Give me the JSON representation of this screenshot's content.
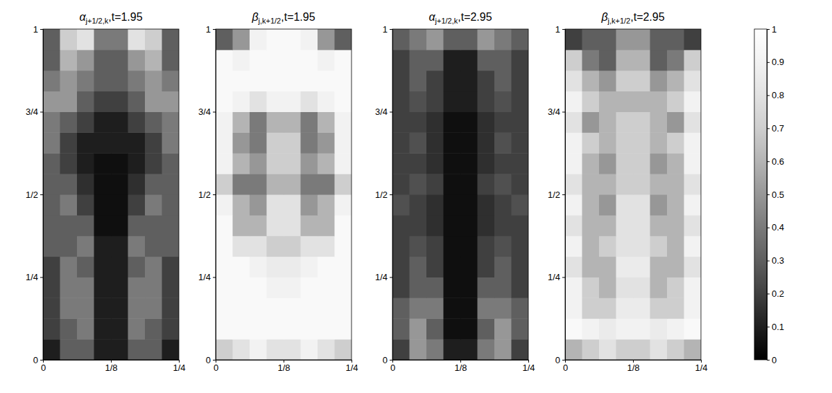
{
  "chart_data": [
    {
      "type": "heatmap",
      "title": {
        "text": "α",
        "sub": "j+1/2,k",
        "suffix": ",t=1.95"
      },
      "xlim": [
        0,
        0.25
      ],
      "ylim": [
        0,
        1
      ],
      "xticks": [
        0,
        {
          "value": 0.125,
          "label": "1/8"
        },
        {
          "value": 0.25,
          "label": "1/4"
        }
      ],
      "yticks": [
        0,
        {
          "value": 0.25,
          "label": "1/4"
        },
        {
          "value": 0.5,
          "label": "1/2"
        },
        {
          "value": 0.75,
          "label": "3/4"
        },
        1
      ],
      "cells": [
        [
          0.1,
          0.3,
          0.3,
          0.1,
          0.1,
          0.3,
          0.3,
          0.1
        ],
        [
          0.2,
          0.3,
          0.4,
          0.1,
          0.1,
          0.4,
          0.3,
          0.2
        ],
        [
          0.2,
          0.4,
          0.4,
          0.1,
          0.1,
          0.4,
          0.4,
          0.2
        ],
        [
          0.2,
          0.4,
          0.4,
          0.1,
          0.1,
          0.4,
          0.4,
          0.2
        ],
        [
          0.2,
          0.4,
          0.3,
          0.1,
          0.1,
          0.3,
          0.4,
          0.2
        ],
        [
          0.3,
          0.3,
          0.4,
          0.1,
          0.1,
          0.4,
          0.3,
          0.3
        ],
        [
          0.3,
          0.3,
          0.3,
          0.05,
          0.05,
          0.3,
          0.3,
          0.3
        ],
        [
          0.3,
          0.4,
          0.2,
          0.05,
          0.05,
          0.2,
          0.4,
          0.3
        ],
        [
          0.3,
          0.3,
          0.15,
          0.05,
          0.05,
          0.15,
          0.3,
          0.3
        ],
        [
          0.3,
          0.2,
          0.1,
          0.05,
          0.05,
          0.1,
          0.2,
          0.3
        ],
        [
          0.4,
          0.2,
          0.1,
          0.1,
          0.1,
          0.1,
          0.2,
          0.4
        ],
        [
          0.4,
          0.3,
          0.2,
          0.1,
          0.1,
          0.2,
          0.3,
          0.4
        ],
        [
          0.5,
          0.5,
          0.3,
          0.2,
          0.2,
          0.3,
          0.5,
          0.5
        ],
        [
          0.4,
          0.5,
          0.4,
          0.3,
          0.3,
          0.4,
          0.5,
          0.4
        ],
        [
          0.3,
          0.6,
          0.5,
          0.3,
          0.3,
          0.5,
          0.6,
          0.3
        ],
        [
          0.3,
          0.7,
          0.8,
          0.4,
          0.4,
          0.8,
          0.7,
          0.3
        ]
      ]
    },
    {
      "type": "heatmap",
      "title": {
        "text": "β",
        "sub": "j,k+1/2",
        "suffix": ",t=1.95"
      },
      "xlim": [
        0,
        0.25
      ],
      "ylim": [
        0,
        1
      ],
      "xticks": [
        0,
        {
          "value": 0.125,
          "label": "1/8"
        },
        {
          "value": 0.25,
          "label": "1/4"
        }
      ],
      "yticks": [
        0,
        {
          "value": 0.25,
          "label": "1/4"
        },
        {
          "value": 0.5,
          "label": "1/2"
        },
        {
          "value": 0.75,
          "label": "3/4"
        },
        1
      ],
      "cells": [
        [
          0.7,
          0.8,
          0.9,
          0.8,
          0.8,
          0.9,
          0.8,
          0.7
        ],
        [
          0.95,
          0.95,
          0.95,
          0.95,
          0.95,
          0.95,
          0.95,
          0.95
        ],
        [
          0.95,
          0.95,
          0.95,
          0.95,
          0.95,
          0.95,
          0.95,
          0.95
        ],
        [
          0.95,
          0.95,
          0.95,
          0.9,
          0.9,
          0.95,
          0.95,
          0.95
        ],
        [
          0.95,
          0.95,
          0.9,
          0.85,
          0.85,
          0.9,
          0.95,
          0.95
        ],
        [
          0.95,
          0.8,
          0.8,
          0.7,
          0.7,
          0.8,
          0.8,
          0.95
        ],
        [
          0.95,
          0.6,
          0.6,
          0.8,
          0.8,
          0.6,
          0.6,
          0.95
        ],
        [
          0.9,
          0.6,
          0.5,
          0.8,
          0.8,
          0.5,
          0.6,
          0.9
        ],
        [
          0.7,
          0.4,
          0.4,
          0.6,
          0.6,
          0.4,
          0.4,
          0.7
        ],
        [
          0.9,
          0.6,
          0.5,
          0.7,
          0.7,
          0.5,
          0.6,
          0.9
        ],
        [
          0.9,
          0.5,
          0.4,
          0.7,
          0.7,
          0.4,
          0.5,
          0.9
        ],
        [
          0.9,
          0.6,
          0.4,
          0.6,
          0.6,
          0.4,
          0.6,
          0.9
        ],
        [
          0.95,
          0.9,
          0.8,
          0.9,
          0.9,
          0.8,
          0.9,
          0.95
        ],
        [
          0.95,
          0.95,
          0.95,
          0.95,
          0.95,
          0.95,
          0.95,
          0.95
        ],
        [
          0.95,
          0.9,
          0.95,
          0.95,
          0.95,
          0.95,
          0.9,
          0.95
        ],
        [
          0.3,
          0.5,
          0.9,
          0.95,
          0.95,
          0.9,
          0.5,
          0.3
        ]
      ]
    },
    {
      "type": "heatmap",
      "title": {
        "text": "α",
        "sub": "j+1/2,k",
        "suffix": ",t=2.95"
      },
      "xlim": [
        0,
        0.25
      ],
      "ylim": [
        0,
        1
      ],
      "xticks": [
        0,
        {
          "value": 0.125,
          "label": "1/8"
        },
        {
          "value": 0.25,
          "label": "1/4"
        }
      ],
      "yticks": [
        0,
        {
          "value": 0.25,
          "label": "1/4"
        },
        {
          "value": 0.5,
          "label": "1/2"
        },
        {
          "value": 0.75,
          "label": "3/4"
        },
        1
      ],
      "cells": [
        [
          0.2,
          0.5,
          0.4,
          0.1,
          0.1,
          0.4,
          0.5,
          0.2
        ],
        [
          0.3,
          0.5,
          0.3,
          0.05,
          0.05,
          0.3,
          0.5,
          0.3
        ],
        [
          0.3,
          0.4,
          0.4,
          0.05,
          0.05,
          0.4,
          0.4,
          0.3
        ],
        [
          0.2,
          0.3,
          0.3,
          0.05,
          0.05,
          0.3,
          0.3,
          0.2
        ],
        [
          0.2,
          0.3,
          0.2,
          0.05,
          0.05,
          0.2,
          0.3,
          0.2
        ],
        [
          0.2,
          0.25,
          0.2,
          0.05,
          0.05,
          0.2,
          0.25,
          0.2
        ],
        [
          0.2,
          0.2,
          0.15,
          0.05,
          0.05,
          0.15,
          0.2,
          0.2
        ],
        [
          0.25,
          0.2,
          0.15,
          0.05,
          0.05,
          0.15,
          0.2,
          0.25
        ],
        [
          0.2,
          0.25,
          0.2,
          0.05,
          0.05,
          0.2,
          0.25,
          0.2
        ],
        [
          0.2,
          0.2,
          0.15,
          0.05,
          0.05,
          0.15,
          0.2,
          0.2
        ],
        [
          0.2,
          0.25,
          0.15,
          0.05,
          0.05,
          0.15,
          0.25,
          0.2
        ],
        [
          0.2,
          0.2,
          0.15,
          0.05,
          0.05,
          0.15,
          0.2,
          0.2
        ],
        [
          0.2,
          0.25,
          0.2,
          0.1,
          0.1,
          0.2,
          0.25,
          0.2
        ],
        [
          0.2,
          0.3,
          0.2,
          0.1,
          0.1,
          0.2,
          0.3,
          0.2
        ],
        [
          0.2,
          0.3,
          0.3,
          0.1,
          0.1,
          0.3,
          0.3,
          0.2
        ],
        [
          0.3,
          0.4,
          0.5,
          0.3,
          0.3,
          0.5,
          0.4,
          0.3
        ]
      ]
    },
    {
      "type": "heatmap",
      "title": {
        "text": "β",
        "sub": "j,k+1/2",
        "suffix": ",t=2.95"
      },
      "xlim": [
        0,
        0.25
      ],
      "ylim": [
        0,
        1
      ],
      "xticks": [
        0,
        {
          "value": 0.125,
          "label": "1/8"
        },
        {
          "value": 0.25,
          "label": "1/4"
        }
      ],
      "yticks": [
        0,
        {
          "value": 0.25,
          "label": "1/4"
        },
        {
          "value": 0.5,
          "label": "1/2"
        },
        {
          "value": 0.75,
          "label": "3/4"
        },
        1
      ],
      "cells": [
        [
          0.6,
          0.7,
          0.8,
          0.7,
          0.7,
          0.8,
          0.7,
          0.6
        ],
        [
          0.95,
          0.9,
          0.85,
          0.9,
          0.9,
          0.85,
          0.9,
          0.95
        ],
        [
          0.9,
          0.7,
          0.7,
          0.85,
          0.85,
          0.7,
          0.7,
          0.9
        ],
        [
          0.9,
          0.7,
          0.6,
          0.8,
          0.8,
          0.6,
          0.7,
          0.9
        ],
        [
          0.8,
          0.6,
          0.6,
          0.85,
          0.85,
          0.6,
          0.6,
          0.8
        ],
        [
          0.9,
          0.6,
          0.7,
          0.8,
          0.8,
          0.7,
          0.6,
          0.9
        ],
        [
          0.8,
          0.6,
          0.6,
          0.8,
          0.8,
          0.6,
          0.6,
          0.8
        ],
        [
          0.9,
          0.6,
          0.5,
          0.8,
          0.8,
          0.5,
          0.6,
          0.9
        ],
        [
          0.8,
          0.6,
          0.6,
          0.7,
          0.7,
          0.6,
          0.6,
          0.8
        ],
        [
          0.9,
          0.6,
          0.5,
          0.7,
          0.7,
          0.5,
          0.6,
          0.9
        ],
        [
          0.9,
          0.7,
          0.6,
          0.7,
          0.7,
          0.6,
          0.7,
          0.9
        ],
        [
          0.8,
          0.5,
          0.6,
          0.7,
          0.7,
          0.6,
          0.5,
          0.8
        ],
        [
          0.9,
          0.7,
          0.6,
          0.6,
          0.6,
          0.6,
          0.7,
          0.9
        ],
        [
          0.8,
          0.6,
          0.5,
          0.7,
          0.7,
          0.5,
          0.6,
          0.8
        ],
        [
          0.7,
          0.4,
          0.3,
          0.6,
          0.6,
          0.3,
          0.4,
          0.7
        ],
        [
          0.2,
          0.3,
          0.3,
          0.5,
          0.5,
          0.3,
          0.3,
          0.2
        ]
      ],
      "colorbar": {
        "range": [
          0,
          1
        ],
        "ticks": [
          0,
          0.1,
          0.2,
          0.3,
          0.4,
          0.5,
          0.6,
          0.7,
          0.8,
          0.9,
          1
        ]
      }
    }
  ]
}
